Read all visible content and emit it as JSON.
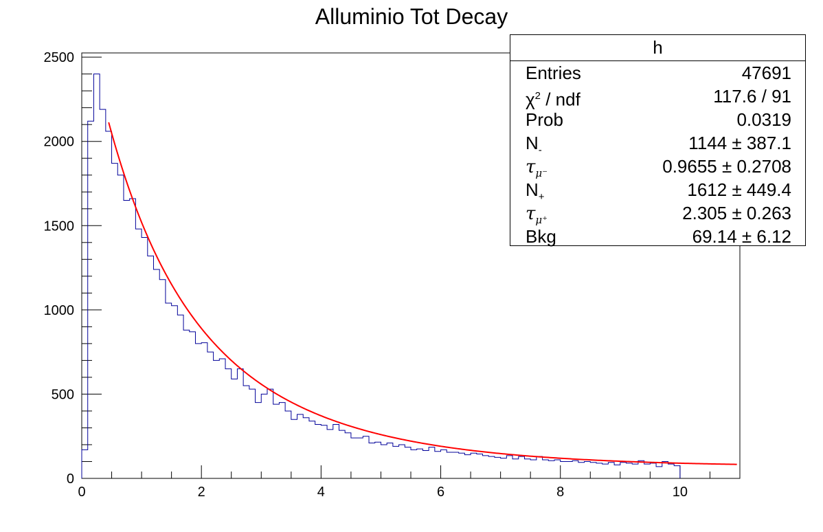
{
  "chart_data": {
    "type": "bar",
    "title": "Alluminio Tot Decay",
    "xlabel": "",
    "ylabel": "",
    "xlim": [
      0,
      11
    ],
    "ylim": [
      0,
      2525
    ],
    "bin_width": 0.1,
    "x_ticks": [
      0,
      2,
      4,
      6,
      8,
      10
    ],
    "y_ticks": [
      0,
      500,
      1000,
      1500,
      2000,
      2500
    ],
    "grid": false,
    "series": [
      {
        "kind": "histogram",
        "color": "#000099",
        "bin_edges_start": 0,
        "values": [
          170,
          2120,
          2400,
          2190,
          2060,
          1870,
          1800,
          1650,
          1660,
          1480,
          1430,
          1320,
          1240,
          1180,
          1040,
          1025,
          970,
          880,
          870,
          800,
          805,
          750,
          700,
          710,
          650,
          590,
          650,
          550,
          530,
          450,
          500,
          530,
          440,
          450,
          400,
          350,
          380,
          360,
          340,
          320,
          315,
          290,
          320,
          285,
          270,
          240,
          240,
          250,
          210,
          215,
          200,
          210,
          190,
          200,
          185,
          170,
          175,
          165,
          185,
          160,
          170,
          155,
          155,
          150,
          140,
          150,
          145,
          135,
          130,
          125,
          120,
          135,
          115,
          130,
          115,
          110,
          130,
          110,
          105,
          110,
          100,
          100,
          105,
          95,
          100,
          95,
          90,
          85,
          95,
          80,
          95,
          90,
          85,
          105,
          85,
          90,
          70,
          100,
          85,
          75
        ]
      },
      {
        "kind": "fit",
        "color": "#ff0000",
        "x_range": [
          0.45,
          10.95
        ],
        "function": "N- * exp(-t/tau_mu-) + N+ * exp(-t/tau_mu+) + Bkg"
      }
    ],
    "legend": "top-right"
  },
  "stats": {
    "title": "h",
    "rows": [
      {
        "label": "Entries",
        "value": "47691"
      },
      {
        "label": "χ",
        "sup": "2",
        "after": " / ndf",
        "value": "117.6 / 91"
      },
      {
        "label": "Prob",
        "value": "0.0319"
      },
      {
        "label": "N",
        "sub": "-",
        "value": "1144 ± 387.1"
      },
      {
        "label": "τ",
        "sub": "μ⁻",
        "value": "0.9655 ± 0.2708"
      },
      {
        "label": "N",
        "sub": "+",
        "value": "1612 ± 449.4"
      },
      {
        "label": "τ",
        "sub": "μ⁺",
        "value": "2.305 ± 0.263"
      },
      {
        "label": "Bkg",
        "value": "69.14 ± 6.12"
      }
    ]
  },
  "fit_params": {
    "n_minus": 1144,
    "tau_minus": 0.9655,
    "n_plus": 1612,
    "tau_plus": 2.305,
    "bkg": 69.14
  }
}
